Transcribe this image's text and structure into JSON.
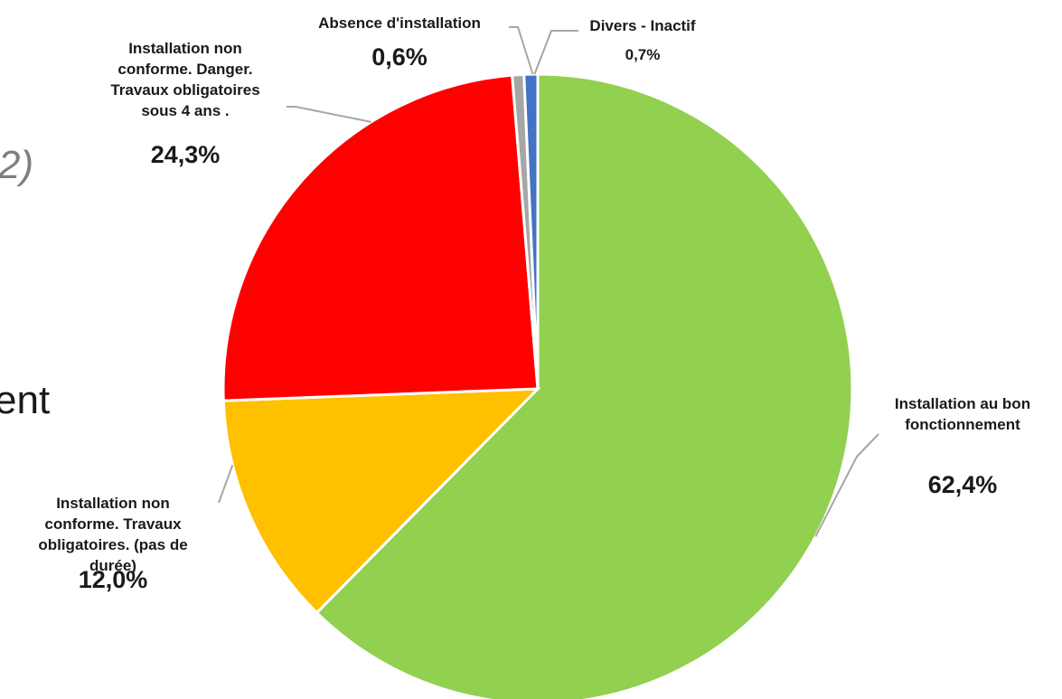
{
  "background": {
    "fragment_top": "2)",
    "fragment_mid": "ent"
  },
  "chart_data": {
    "type": "pie",
    "start": "top",
    "direction": "clockwise",
    "slices": [
      {
        "label": "Installation au bon fonctionnement",
        "label_lines": [
          "Installation au bon",
          "fonctionnement"
        ],
        "value": 62.4,
        "value_text": "62,4%",
        "color": "#92d050"
      },
      {
        "label": "Installation non conforme. Travaux obligatoires. (pas de durée)",
        "label_lines": [
          "Installation non",
          "conforme. Travaux",
          "obligatoires. (pas de",
          "durée)"
        ],
        "value": 12.0,
        "value_text": "12,0%",
        "color": "#ffc000"
      },
      {
        "label": "Installation non conforme. Danger. Travaux obligatoires sous 4 ans .",
        "label_lines": [
          "Installation non",
          "conforme. Danger.",
          "Travaux obligatoires",
          "sous 4 ans ."
        ],
        "value": 24.3,
        "value_text": "24,3%",
        "color": "#ff0000"
      },
      {
        "label": "Absence d'installation",
        "label_lines": [
          "Absence d'installation"
        ],
        "value": 0.6,
        "value_text": "0,6%",
        "color": "#a6a6a6"
      },
      {
        "label": "Divers - Inactif",
        "label_lines": [
          "Divers - Inactif"
        ],
        "value": 0.7,
        "value_text": "0,7%",
        "color": "#4472c4"
      }
    ]
  }
}
